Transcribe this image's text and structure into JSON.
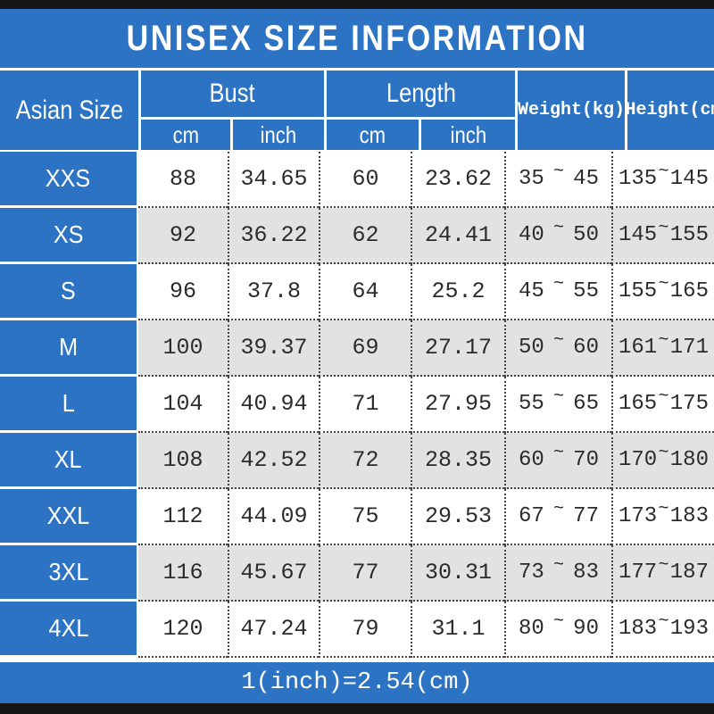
{
  "title": "UNISEX SIZE INFORMATION",
  "table": {
    "corner_label": "Asian Size",
    "groups": [
      {
        "label": "Bust",
        "sub": [
          "cm",
          "inch"
        ]
      },
      {
        "label": "Length",
        "sub": [
          "cm",
          "inch"
        ]
      }
    ],
    "weight_header": "Weight(kg)",
    "height_header": "Height(cm)",
    "tilde": "~",
    "rows": [
      {
        "size": "XXS",
        "bust_cm": "88",
        "bust_inch": "34.65",
        "length_cm": "60",
        "length_inch": "23.62",
        "weight_min": "35",
        "weight_max": "45",
        "height_min": "135",
        "height_max": "145"
      },
      {
        "size": "XS",
        "bust_cm": "92",
        "bust_inch": "36.22",
        "length_cm": "62",
        "length_inch": "24.41",
        "weight_min": "40",
        "weight_max": "50",
        "height_min": "145",
        "height_max": "155"
      },
      {
        "size": "S",
        "bust_cm": "96",
        "bust_inch": "37.8",
        "length_cm": "64",
        "length_inch": "25.2",
        "weight_min": "45",
        "weight_max": "55",
        "height_min": "155",
        "height_max": "165"
      },
      {
        "size": "M",
        "bust_cm": "100",
        "bust_inch": "39.37",
        "length_cm": "69",
        "length_inch": "27.17",
        "weight_min": "50",
        "weight_max": "60",
        "height_min": "161",
        "height_max": "171"
      },
      {
        "size": "L",
        "bust_cm": "104",
        "bust_inch": "40.94",
        "length_cm": "71",
        "length_inch": "27.95",
        "weight_min": "55",
        "weight_max": "65",
        "height_min": "165",
        "height_max": "175"
      },
      {
        "size": "XL",
        "bust_cm": "108",
        "bust_inch": "42.52",
        "length_cm": "72",
        "length_inch": "28.35",
        "weight_min": "60",
        "weight_max": "70",
        "height_min": "170",
        "height_max": "180"
      },
      {
        "size": "XXL",
        "bust_cm": "112",
        "bust_inch": "44.09",
        "length_cm": "75",
        "length_inch": "29.53",
        "weight_min": "67",
        "weight_max": "77",
        "height_min": "173",
        "height_max": "183"
      },
      {
        "size": "3XL",
        "bust_cm": "116",
        "bust_inch": "45.67",
        "length_cm": "77",
        "length_inch": "30.31",
        "weight_min": "73",
        "weight_max": "83",
        "height_min": "177",
        "height_max": "187"
      },
      {
        "size": "4XL",
        "bust_cm": "120",
        "bust_inch": "47.24",
        "length_cm": "79",
        "length_inch": "31.1",
        "weight_min": "80",
        "weight_max": "90",
        "height_min": "183",
        "height_max": "193"
      }
    ]
  },
  "footer": {
    "note": "1(inch)=2.54(cm)"
  },
  "colors": {
    "blue": "#2c73c4",
    "alt": "#e2e2e2",
    "bar": "#161616",
    "ink": "#2b2b2b",
    "dot": "#444444"
  }
}
